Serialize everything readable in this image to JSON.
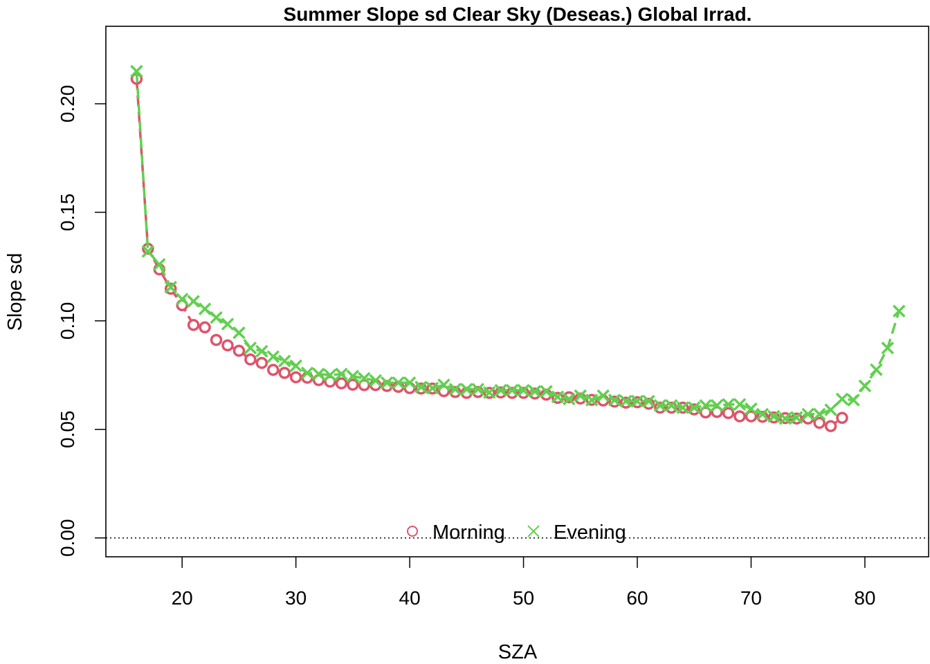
{
  "chart_data": {
    "type": "line",
    "title": "Summer Slope sd Clear Sky (Deseas.) Global Irrad.",
    "xlabel": "SZA",
    "ylabel": "Slope sd",
    "xlim": [
      13.3,
      85.6
    ],
    "ylim": [
      -0.0087,
      0.2357
    ],
    "x_ticks": [
      20,
      30,
      40,
      50,
      60,
      70,
      80
    ],
    "y_ticks": [
      0.0,
      0.05,
      0.1,
      0.15,
      0.2
    ],
    "x_tick_labels": [
      "20",
      "30",
      "40",
      "50",
      "60",
      "70",
      "80"
    ],
    "y_tick_labels": [
      "0.00",
      "0.05",
      "0.10",
      "0.15",
      "0.20"
    ],
    "reference_line": {
      "y": 0,
      "style": "dotted"
    },
    "grid": false,
    "legend": {
      "placement": "bottom-center"
    },
    "series": [
      {
        "name": "Morning",
        "color": "#DF536B",
        "marker": "circle",
        "x": [
          16,
          17,
          18,
          19,
          20,
          21,
          22,
          23,
          24,
          25,
          26,
          27,
          28,
          29,
          30,
          31,
          32,
          33,
          34,
          35,
          36,
          37,
          38,
          39,
          40,
          41,
          42,
          43,
          44,
          45,
          46,
          47,
          48,
          49,
          50,
          51,
          52,
          53,
          54,
          55,
          56,
          57,
          58,
          59,
          60,
          61,
          62,
          63,
          64,
          65,
          66,
          67,
          68,
          69,
          70,
          71,
          72,
          73,
          74,
          75,
          76,
          77,
          78
        ],
        "values": [
          0.2115,
          0.1332,
          0.1237,
          0.1148,
          0.1072,
          0.0981,
          0.097,
          0.0912,
          0.0887,
          0.0862,
          0.0822,
          0.0806,
          0.0774,
          0.076,
          0.074,
          0.0738,
          0.0727,
          0.072,
          0.0712,
          0.0706,
          0.0704,
          0.0704,
          0.07,
          0.0696,
          0.069,
          0.0688,
          0.0688,
          0.0676,
          0.0672,
          0.0668,
          0.0672,
          0.0668,
          0.067,
          0.0668,
          0.0668,
          0.0665,
          0.066,
          0.0645,
          0.0648,
          0.0642,
          0.0636,
          0.0633,
          0.0628,
          0.0623,
          0.0625,
          0.0618,
          0.06,
          0.06,
          0.06,
          0.0592,
          0.0578,
          0.058,
          0.0575,
          0.056,
          0.056,
          0.0558,
          0.0555,
          0.0552,
          0.055,
          0.055,
          0.053,
          0.0515,
          0.0553
        ]
      },
      {
        "name": "Evening",
        "color": "#61D04F",
        "marker": "cross",
        "x": [
          16,
          17,
          18,
          19,
          20,
          21,
          22,
          23,
          24,
          25,
          26,
          27,
          28,
          29,
          30,
          31,
          32,
          33,
          34,
          35,
          36,
          37,
          38,
          39,
          40,
          41,
          42,
          43,
          44,
          45,
          46,
          47,
          48,
          49,
          50,
          51,
          52,
          53,
          54,
          55,
          56,
          57,
          58,
          59,
          60,
          61,
          62,
          63,
          64,
          65,
          66,
          67,
          68,
          69,
          70,
          71,
          72,
          73,
          74,
          75,
          76,
          77,
          78,
          79,
          80,
          81,
          82,
          83
        ],
        "values": [
          0.215,
          0.132,
          0.126,
          0.1155,
          0.11,
          0.109,
          0.1055,
          0.1015,
          0.0985,
          0.0945,
          0.0875,
          0.086,
          0.0835,
          0.0815,
          0.0793,
          0.076,
          0.0755,
          0.075,
          0.0755,
          0.0745,
          0.0735,
          0.0725,
          0.0715,
          0.0715,
          0.0715,
          0.0695,
          0.069,
          0.0705,
          0.0685,
          0.0685,
          0.0685,
          0.067,
          0.068,
          0.068,
          0.068,
          0.0675,
          0.0675,
          0.065,
          0.064,
          0.0655,
          0.0635,
          0.0655,
          0.0635,
          0.063,
          0.063,
          0.063,
          0.061,
          0.061,
          0.06,
          0.06,
          0.061,
          0.061,
          0.0615,
          0.0615,
          0.0595,
          0.057,
          0.056,
          0.055,
          0.0555,
          0.057,
          0.057,
          0.059,
          0.064,
          0.0635,
          0.07,
          0.0775,
          0.0875,
          0.1045
        ]
      }
    ]
  }
}
